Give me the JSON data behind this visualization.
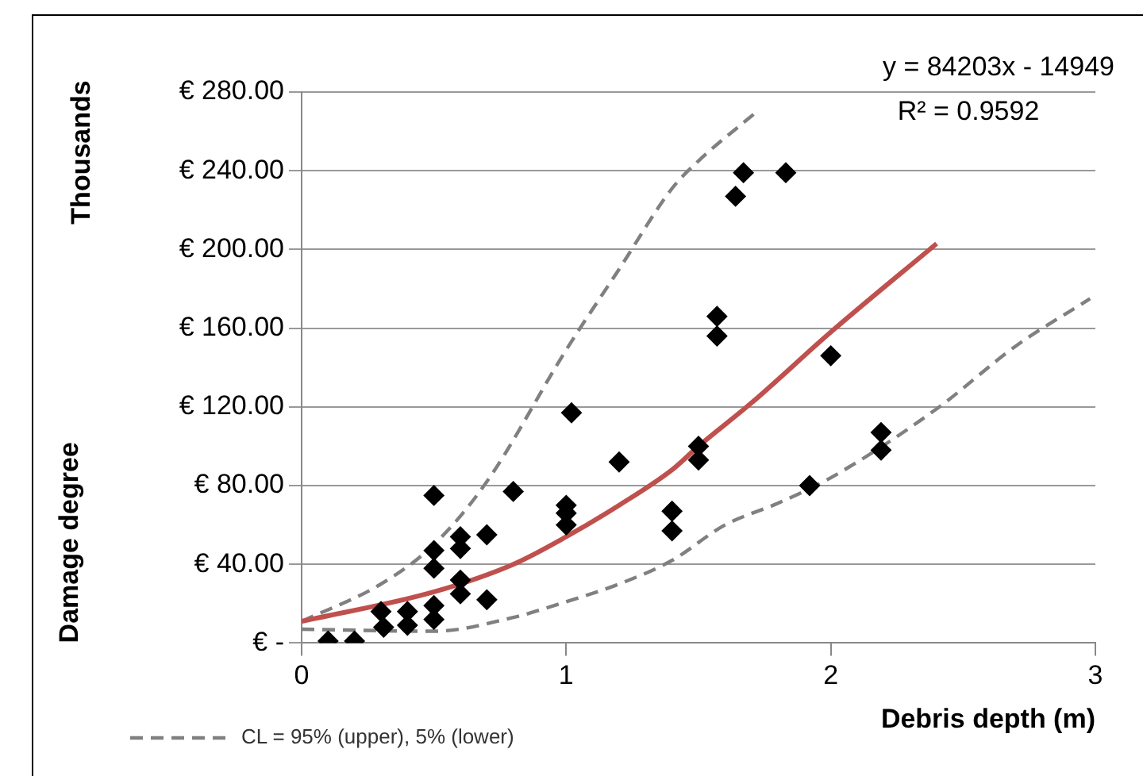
{
  "chart_data": {
    "type": "scatter",
    "xlabel": "Debris depth (m)",
    "ylabel": "Damage degree",
    "annotations": [
      "y = 84203x - 14949",
      "R² = 0.9592",
      "Thousands"
    ],
    "xlim": [
      0,
      3
    ],
    "xticks": [
      0,
      1,
      2,
      3
    ],
    "ylim": [
      0,
      280
    ],
    "yticks": [
      {
        "value": 0,
        "label": "€ -"
      },
      {
        "value": 40,
        "label": "€ 40.00"
      },
      {
        "value": 80,
        "label": "€ 80.00"
      },
      {
        "value": 120,
        "label": "€ 120.00"
      },
      {
        "value": 160,
        "label": "€ 160.00"
      },
      {
        "value": 200,
        "label": "€ 200.00"
      },
      {
        "value": 240,
        "label": "€ 240.00"
      },
      {
        "value": 280,
        "label": "€ 280.00"
      }
    ],
    "grid": "y",
    "legend": "bottom left",
    "series": [
      {
        "type": "scatter",
        "color": "#000000",
        "marker": "diamond",
        "x": [
          0.1,
          0.2,
          0.31,
          0.3,
          0.4,
          0.4,
          0.5,
          0.5,
          0.5,
          0.5,
          0.5,
          0.6,
          0.6,
          0.6,
          0.6,
          0.7,
          0.7,
          0.8,
          1.0,
          1.0,
          1.0,
          1.02,
          1.2,
          1.4,
          1.4,
          1.5,
          1.5,
          1.57,
          1.57,
          1.64,
          1.67,
          1.83,
          1.92,
          2.0,
          2.19,
          2.19
        ],
        "values": [
          1,
          1,
          8,
          16,
          9,
          16,
          12,
          19,
          38,
          47,
          75,
          25,
          32,
          48,
          54,
          22,
          55,
          77,
          60,
          66,
          70,
          117,
          92,
          57,
          67,
          93,
          100,
          156,
          166,
          227,
          239,
          239,
          80,
          146,
          98,
          107
        ]
      },
      {
        "type": "line",
        "color": "#c0504d",
        "marker": "none",
        "line_style": "solid",
        "x": [
          0,
          0.5,
          0.8,
          1.0,
          1.2,
          1.4,
          1.5,
          1.7,
          2.0,
          2.4
        ],
        "values": [
          11,
          26,
          40,
          54,
          70,
          88,
          100,
          122,
          158,
          203
        ]
      },
      {
        "type": "line",
        "name": "CL = 95% (upper), 5% (lower)",
        "color": "#808080",
        "marker": "none",
        "line_style": "dashed",
        "x": [
          0,
          0.3,
          0.5,
          0.7,
          1.0,
          1.2,
          1.4,
          1.5,
          1.72
        ],
        "values": [
          11,
          30,
          50,
          82,
          149,
          190,
          231,
          245,
          270
        ]
      },
      {
        "type": "line",
        "color": "#808080",
        "marker": "none",
        "line_style": "dashed",
        "x": [
          0,
          0.5,
          0.8,
          1.0,
          1.2,
          1.4,
          1.6,
          1.8,
          2.0,
          2.4,
          2.7,
          2.98
        ],
        "values": [
          7,
          6,
          13,
          21,
          30,
          42,
          60,
          71,
          84,
          119,
          151,
          175
        ]
      }
    ]
  }
}
